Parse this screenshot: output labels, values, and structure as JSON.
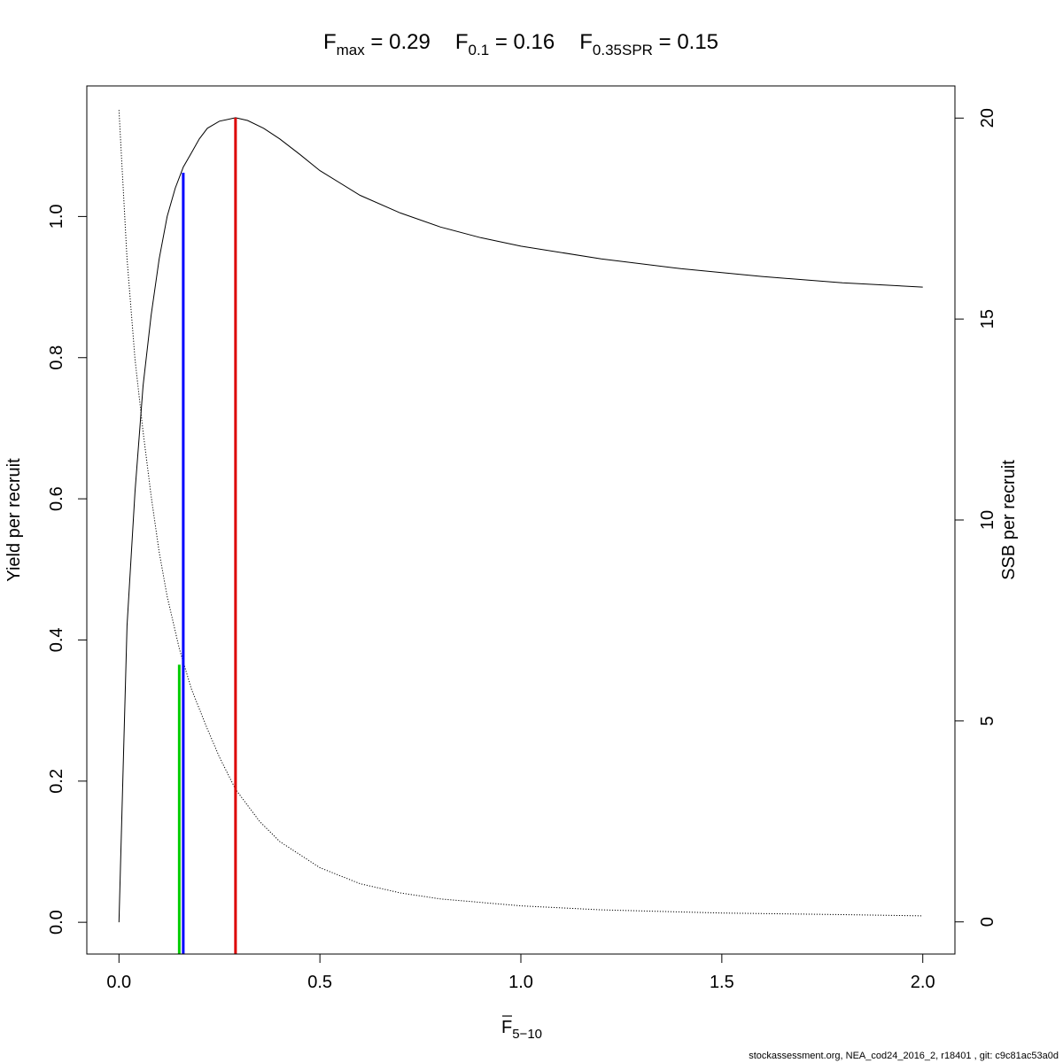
{
  "chart_data": {
    "type": "line",
    "title_parts": [
      {
        "main": "F",
        "sub": "max",
        "eq": " = ",
        "value": "0.29"
      },
      {
        "main": "F",
        "sub": "0.1",
        "eq": " = ",
        "value": "0.16"
      },
      {
        "main": "F",
        "sub": "0.35SPR",
        "eq": " = ",
        "value": "0.15"
      }
    ],
    "xlabel_main": "F",
    "xlabel_sub": "5−10",
    "ylabel_left": "Yield per recruit",
    "ylabel_right": "SSB per recruit",
    "footer": "stockassessment.org, NEA_cod24_2016_2, r18401 , git: c9c81ac53a0d",
    "xlim": [
      -0.08,
      2.08
    ],
    "ylim_left": [
      -0.045,
      1.185
    ],
    "ylim_right": [
      -0.8,
      20.8
    ],
    "x_ticks": [
      0.0,
      0.5,
      1.0,
      1.5,
      2.0
    ],
    "x_tick_labels": [
      "0.0",
      "0.5",
      "1.0",
      "1.5",
      "2.0"
    ],
    "y_left_ticks": [
      0.0,
      0.2,
      0.4,
      0.6,
      0.8,
      1.0
    ],
    "y_left_tick_labels": [
      "0.0",
      "0.2",
      "0.4",
      "0.6",
      "0.8",
      "1.0"
    ],
    "y_right_ticks": [
      0,
      5,
      10,
      15,
      20
    ],
    "y_right_tick_labels": [
      "0",
      "5",
      "10",
      "15",
      "20"
    ],
    "series": [
      {
        "axis": "left",
        "style": "solid",
        "color": "#000000",
        "x": [
          0.0,
          0.02,
          0.04,
          0.06,
          0.08,
          0.1,
          0.12,
          0.14,
          0.16,
          0.18,
          0.2,
          0.22,
          0.25,
          0.29,
          0.32,
          0.36,
          0.4,
          0.45,
          0.5,
          0.6,
          0.7,
          0.8,
          0.9,
          1.0,
          1.2,
          1.4,
          1.6,
          1.8,
          2.0
        ],
        "y": [
          0.0,
          0.42,
          0.61,
          0.76,
          0.86,
          0.94,
          1.0,
          1.04,
          1.07,
          1.09,
          1.11,
          1.125,
          1.135,
          1.14,
          1.136,
          1.125,
          1.11,
          1.088,
          1.065,
          1.03,
          1.005,
          0.985,
          0.97,
          0.958,
          0.94,
          0.926,
          0.915,
          0.906,
          0.9
        ]
      },
      {
        "axis": "right",
        "style": "dotted",
        "color": "#000000",
        "x": [
          0.0,
          0.02,
          0.04,
          0.06,
          0.08,
          0.1,
          0.12,
          0.15,
          0.18,
          0.22,
          0.25,
          0.29,
          0.35,
          0.4,
          0.5,
          0.6,
          0.7,
          0.8,
          1.0,
          1.2,
          1.5,
          1.8,
          2.0
        ],
        "y": [
          20.2,
          16.5,
          14.0,
          12.2,
          10.6,
          9.2,
          8.1,
          6.8,
          5.8,
          4.8,
          4.1,
          3.3,
          2.5,
          2.0,
          1.35,
          0.95,
          0.72,
          0.57,
          0.4,
          0.3,
          0.22,
          0.18,
          0.15
        ]
      }
    ],
    "reference_lines": [
      {
        "name": "F0.35SPR",
        "x": 0.15,
        "y_top_left": 0.365,
        "color": "#00cc00"
      },
      {
        "name": "F0.1",
        "x": 0.16,
        "y_top_left": 1.062,
        "color": "#0000ff"
      },
      {
        "name": "Fmax",
        "x": 0.29,
        "y_top_left": 1.14,
        "color": "#dd0000"
      }
    ]
  }
}
